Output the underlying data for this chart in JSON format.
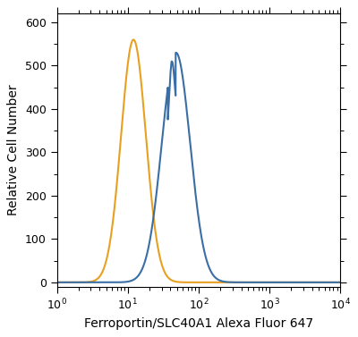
{
  "xlabel": "Ferroportin/SLC40A1 Alexa Fluor 647",
  "ylabel": "Relative Cell Number",
  "xlim": [
    1.0,
    10000.0
  ],
  "ylim": [
    -10,
    620
  ],
  "yticks": [
    0,
    100,
    200,
    300,
    400,
    500,
    600
  ],
  "orange_color": "#E8A020",
  "blue_color": "#3A6EA5",
  "orange_peak_log_x": 1.08,
  "orange_peak_y": 560,
  "orange_sigma": 0.175,
  "blue_peak_log_x": 1.68,
  "blue_peak_y": 530,
  "blue_shoulder_log_x": 1.62,
  "blue_shoulder_y": 510,
  "blue_sigma": 0.2,
  "blue_shoulder_sigma": 0.04,
  "line_width": 1.5,
  "spine_linewidth": 0.8,
  "tick_labelsize": 9,
  "xlabel_fontsize": 10,
  "ylabel_fontsize": 10
}
